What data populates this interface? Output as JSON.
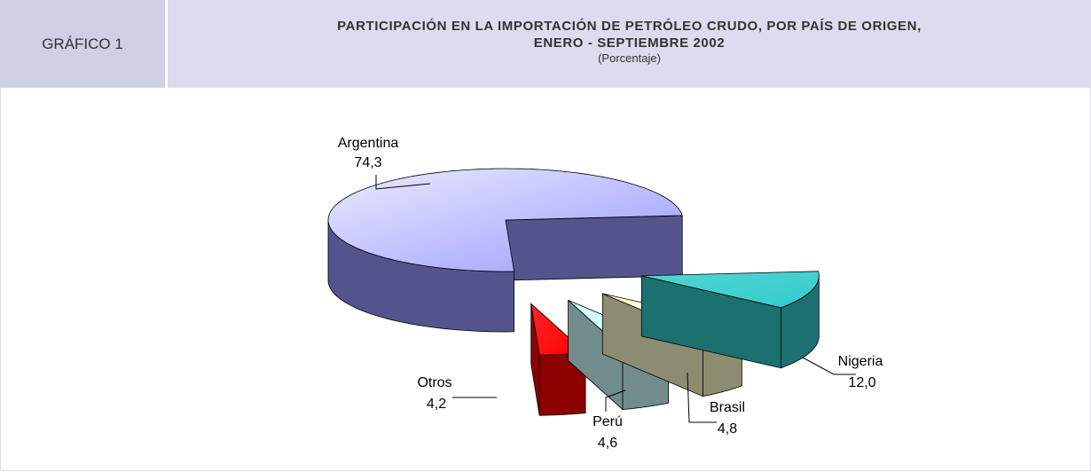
{
  "chart_data": {
    "type": "pie3d",
    "figure_label": "GRÁFICO 1",
    "title": [
      "PARTICIPACIÓN EN LA IMPORTACIÓN DE PETRÓLEO CRUDO, POR PAÍS DE ORIGEN,",
      "ENERO - SEPTIEMBRE 2002"
    ],
    "subtitle": "(Porcentaje)",
    "categories": [
      "Nigeria",
      "Brasil",
      "Perú",
      "Otros",
      "Argentina"
    ],
    "values": [
      12.0,
      4.8,
      4.6,
      4.2,
      74.3
    ],
    "value_labels": [
      "12,0",
      "4,8",
      "4,6",
      "4,2",
      "74,3"
    ],
    "colors": [
      "#33cccc",
      "#ffffcc",
      "#ccffff",
      "#ff0000",
      "#9999ff"
    ]
  }
}
